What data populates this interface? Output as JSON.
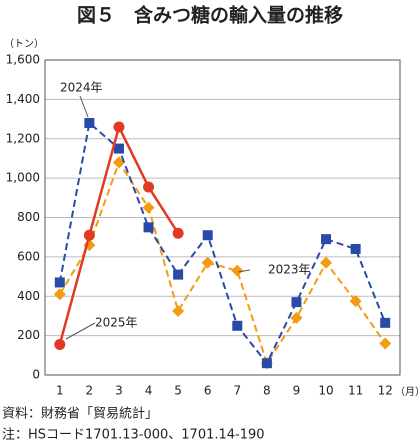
{
  "chart_data": {
    "type": "line",
    "title": "図５　含みつ糖の輸入量の推移",
    "y_unit": "（トン）",
    "x_unit": "（月）",
    "categories": [
      "1",
      "2",
      "3",
      "4",
      "5",
      "6",
      "7",
      "8",
      "9",
      "10",
      "11",
      "12"
    ],
    "series": [
      {
        "name": "2023年",
        "color": "#f39c12",
        "marker": "diamond",
        "dash": true,
        "values": [
          410,
          660,
          1080,
          850,
          325,
          570,
          530,
          60,
          290,
          570,
          375,
          160
        ]
      },
      {
        "name": "2024年",
        "color": "#2a4aa8",
        "marker": "square",
        "dash": true,
        "values": [
          470,
          1280,
          1150,
          750,
          510,
          710,
          250,
          60,
          370,
          690,
          640,
          265
        ]
      },
      {
        "name": "2025年",
        "color": "#e03a24",
        "marker": "circle",
        "dash": false,
        "values": [
          155,
          710,
          1260,
          955,
          720,
          null,
          null,
          null,
          null,
          null,
          null,
          null
        ]
      }
    ],
    "ylim": [
      0,
      1600
    ],
    "yticks": [
      0,
      200,
      400,
      600,
      800,
      {
        "value": 1000,
        "label": "1,000"
      },
      {
        "value": 1200,
        "label": "1,200"
      },
      {
        "value": 1400,
        "label": "1,400"
      },
      {
        "value": 1600,
        "label": "1,600"
      }
    ],
    "grid": true,
    "notes": [
      "資料：財務省「貿易統計」",
      "注：HSコード1701.13-000、1701.14-190"
    ]
  }
}
